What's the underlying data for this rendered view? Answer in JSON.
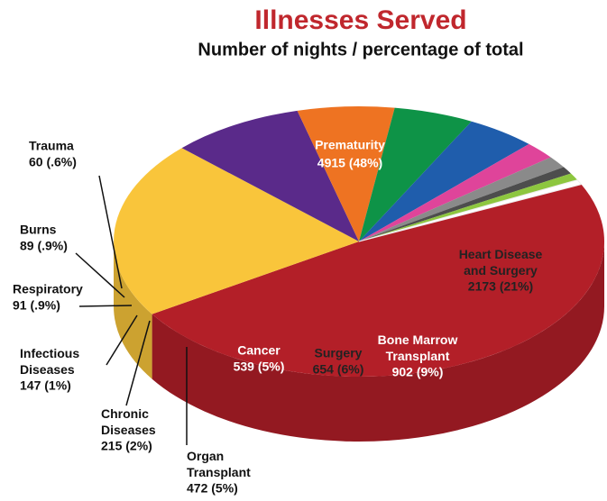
{
  "chart_data": {
    "type": "pie",
    "title": "Illnesses Served",
    "subtitle": "Number of nights / percentage of total",
    "categories": [
      "Prematurity",
      "Heart Disease and Surgery",
      "Bone Marrow Transplant",
      "Surgery",
      "Cancer",
      "Organ Transplant",
      "Chronic Diseases",
      "Infectious Diseases",
      "Respiratory",
      "Burns",
      "Trauma"
    ],
    "values": [
      4915,
      2173,
      902,
      654,
      539,
      472,
      215,
      147,
      91,
      89,
      60
    ],
    "value_labels": [
      "4915 (48%)",
      "2173 (21%)",
      "902 (9%)",
      "654 (6%)",
      "539 (5%)",
      "472 (5%)",
      "215 (2%)",
      "147 (1%)",
      "91 (.9%)",
      "89 (.9%)",
      "60 (.6%)"
    ],
    "colors": [
      "#b31f28",
      "#f9c53b",
      "#5a2a8a",
      "#ee7322",
      "#0e9347",
      "#1f5dac",
      "#df449a",
      "#8a8a8a",
      "#4d4d4d",
      "#8dc63f",
      "#ffffff"
    ]
  }
}
